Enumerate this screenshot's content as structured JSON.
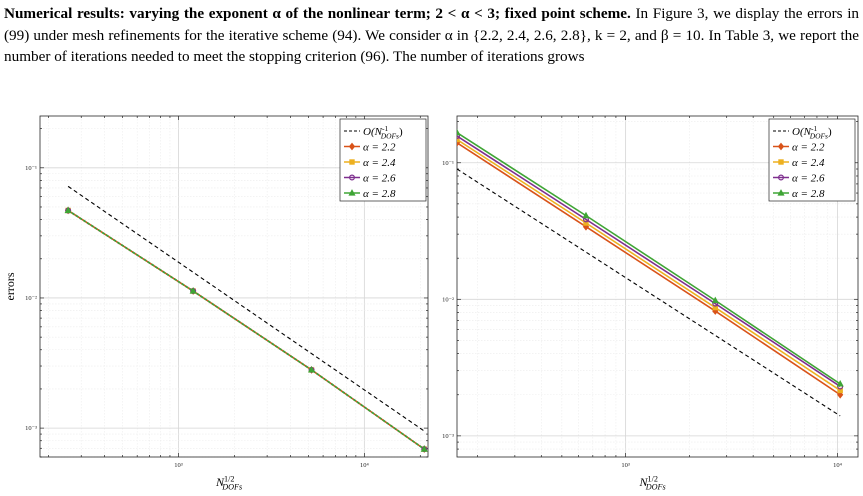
{
  "paragraph": {
    "heading": "Numerical results: varying the exponent α of the nonlinear term; 2 < α < 3; fixed point scheme.",
    "body": "In Figure 3, we display the errors in (99) under mesh refinements for the iterative scheme (94). We consider α in {2.2, 2.4, 2.6, 2.8}, k = 2, and β = 10. In Table 3, we report the number of iterations needed to meet the stopping criterion (96). The number of iterations grows"
  },
  "colors": {
    "alpha_2_2": "#d95319",
    "alpha_2_4": "#edb120",
    "alpha_2_6": "#7e2f8e",
    "alpha_2_8": "#3fa535",
    "reference": "#000000"
  },
  "chart_data": [
    {
      "type": "line",
      "xscale": "log",
      "yscale": "log",
      "xlim": [
        180,
        22000
      ],
      "ylim": [
        0.0006,
        0.25
      ],
      "xticks": [
        "10³",
        "10⁴"
      ],
      "yticks": [
        "10⁻¹",
        "10⁻²",
        "10⁻³"
      ],
      "xlabel": "N^{1/2}_{DOFs}",
      "ylabel": "errors",
      "grid": true,
      "legend": "top-right",
      "series": [
        {
          "name": "O(N^{-1}_{DOFs})",
          "style": "dashed",
          "marker": "none",
          "x": [
            255,
            21000
          ],
          "y": [
            0.072,
            0.00095
          ]
        },
        {
          "name": "α = 2.2",
          "marker": "diamond",
          "x": [
            255,
            1200,
            5200,
            21000
          ],
          "y": [
            0.047,
            0.0113,
            0.0028,
            0.00069
          ]
        },
        {
          "name": "α = 2.4",
          "marker": "square",
          "x": [
            255,
            1200,
            5200,
            21000
          ],
          "y": [
            0.047,
            0.0113,
            0.0028,
            0.00069
          ]
        },
        {
          "name": "α = 2.6",
          "marker": "circle",
          "x": [
            255,
            1200,
            5200,
            21000
          ],
          "y": [
            0.047,
            0.0113,
            0.0028,
            0.00069
          ]
        },
        {
          "name": "α = 2.8",
          "marker": "triangle",
          "x": [
            255,
            1200,
            5200,
            21000
          ],
          "y": [
            0.047,
            0.0113,
            0.0028,
            0.00069
          ]
        }
      ]
    },
    {
      "type": "line",
      "xscale": "log",
      "yscale": "log",
      "xlim": [
        160,
        12500
      ],
      "ylim": [
        0.0007,
        0.22
      ],
      "xticks": [
        "10³",
        "10⁴"
      ],
      "yticks": [
        "10⁻¹",
        "10⁻²",
        "10⁻³"
      ],
      "xlabel": "N^{1/2}_{DOFs}",
      "ylabel": "",
      "grid": true,
      "legend": "top-right",
      "series": [
        {
          "name": "O(N^{-1}_{DOFs})",
          "style": "dashed",
          "marker": "none",
          "x": [
            160,
            10300
          ],
          "y": [
            0.09,
            0.0014
          ]
        },
        {
          "name": "α = 2.2",
          "marker": "diamond",
          "x": [
            160,
            650,
            2650,
            10300
          ],
          "y": [
            0.14,
            0.034,
            0.0082,
            0.002
          ]
        },
        {
          "name": "α = 2.4",
          "marker": "square",
          "x": [
            160,
            650,
            2650,
            10300
          ],
          "y": [
            0.148,
            0.0362,
            0.0087,
            0.00215
          ]
        },
        {
          "name": "α = 2.6",
          "marker": "circle",
          "x": [
            160,
            650,
            2650,
            10300
          ],
          "y": [
            0.157,
            0.0385,
            0.0093,
            0.0023
          ]
        },
        {
          "name": "α = 2.8",
          "marker": "triangle",
          "x": [
            160,
            650,
            2650,
            10300
          ],
          "y": [
            0.166,
            0.041,
            0.0098,
            0.0024
          ]
        }
      ]
    }
  ]
}
